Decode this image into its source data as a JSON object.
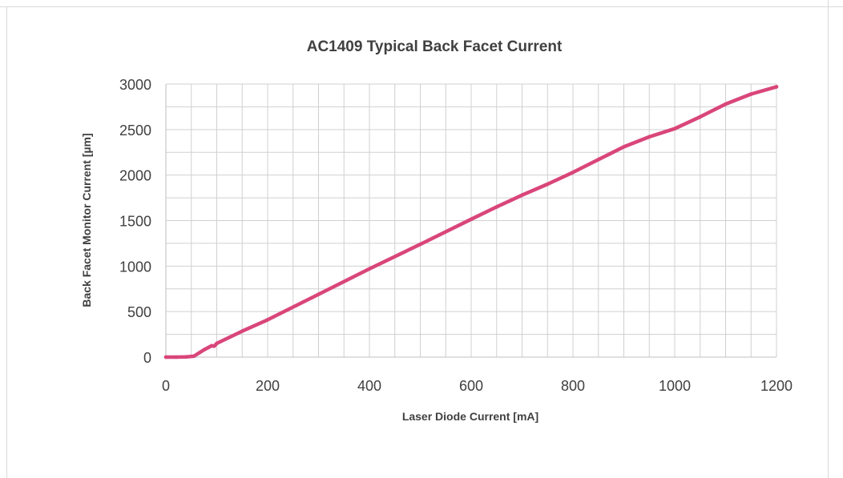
{
  "chart_data": {
    "type": "line",
    "title": "AC1409 Typical Back Facet Current",
    "xlabel": "Laser Diode Current [mA]",
    "ylabel": "Back Facet Monitor Current [µm]",
    "xlim": [
      0,
      1200
    ],
    "ylim": [
      0,
      3000
    ],
    "x_ticks": [
      0,
      200,
      400,
      600,
      800,
      1000,
      1200
    ],
    "y_ticks": [
      0,
      500,
      1000,
      1500,
      2000,
      2500,
      3000
    ],
    "x_minor_step": 50,
    "y_minor_step": 250,
    "grid": true,
    "legend": "none",
    "series_color": "#d9467a",
    "series": [
      {
        "x": [
          0,
          20,
          40,
          55,
          65,
          75,
          85,
          90,
          95,
          100,
          150,
          200,
          300,
          400,
          500,
          600,
          650,
          700,
          750,
          800,
          850,
          900,
          950,
          1000,
          1050,
          1100,
          1150,
          1200
        ],
        "values": [
          0,
          0,
          3,
          10,
          45,
          80,
          110,
          125,
          120,
          150,
          285,
          410,
          690,
          970,
          1240,
          1515,
          1650,
          1780,
          1900,
          2030,
          2170,
          2310,
          2420,
          2510,
          2640,
          2780,
          2890,
          2970
        ]
      }
    ]
  }
}
